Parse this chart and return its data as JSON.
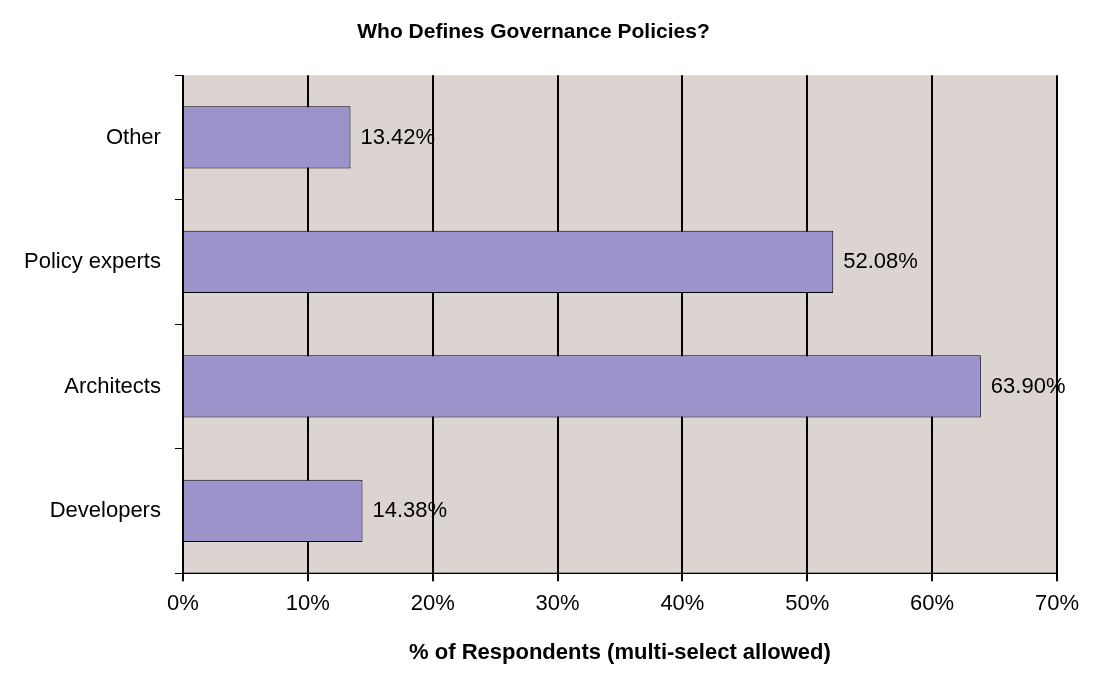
{
  "chart_data": {
    "type": "bar",
    "orientation": "horizontal",
    "title": "Who Defines Governance Policies?",
    "xlabel": "% of Respondents (multi-select allowed)",
    "categories": [
      "Other",
      "Policy experts",
      "Architects",
      "Developers"
    ],
    "values": [
      13.42,
      52.08,
      63.9,
      14.38
    ],
    "value_labels": [
      "13.42%",
      "52.08%",
      "63.90%",
      "14.38%"
    ],
    "color": "#9b93c9",
    "xlim": [
      0,
      70
    ],
    "xticks": [
      {
        "value": 0,
        "label": "0%"
      },
      {
        "value": 10,
        "label": "10%"
      },
      {
        "value": 20,
        "label": "20%"
      },
      {
        "value": 30,
        "label": "30%"
      },
      {
        "value": 40,
        "label": "40%"
      },
      {
        "value": 50,
        "label": "50%"
      },
      {
        "value": 60,
        "label": "60%"
      },
      {
        "value": 70,
        "label": "70%"
      }
    ],
    "grid": "x",
    "legend": false
  }
}
